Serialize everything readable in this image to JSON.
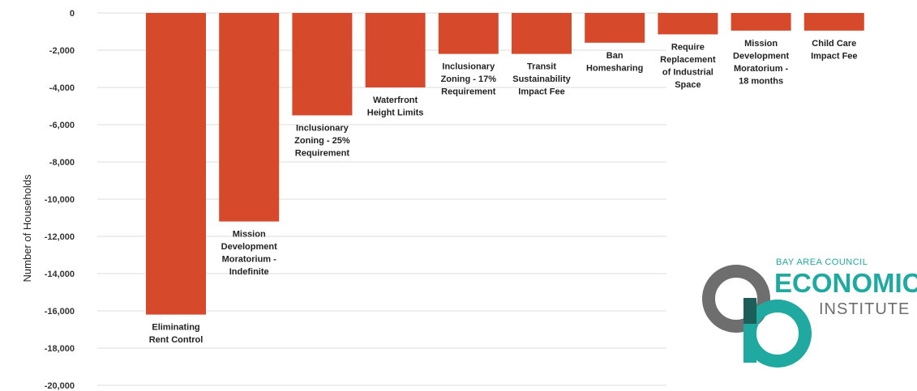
{
  "chart_data": {
    "type": "bar",
    "title": "",
    "xlabel": "",
    "ylabel": "Number of Households",
    "ylim": [
      -20000,
      0
    ],
    "yticks": [
      0,
      -2000,
      -4000,
      -6000,
      -8000,
      -10000,
      -12000,
      -14000,
      -16000,
      -18000,
      -20000
    ],
    "ytick_labels": [
      "0",
      "-2,000",
      "-4,000",
      "-6,000",
      "-8,000",
      "-10,000",
      "-12,000",
      "-14,000",
      "-16,000",
      "-18,000",
      "-20,000"
    ],
    "grid": true,
    "bar_color": "#d64a2b",
    "grid_color": "#dcdcdc",
    "categories": [
      [
        "Eliminating",
        "Rent Control"
      ],
      [
        "Mission",
        "Development",
        "Moratorium -",
        "Indefinite"
      ],
      [
        "Inclusionary",
        "Zoning - 25%",
        "Requirement"
      ],
      [
        "Waterfront",
        "Height Limits"
      ],
      [
        "Inclusionary",
        "Zoning - 17%",
        "Requirement"
      ],
      [
        "Transit",
        "Sustainability",
        "Impact Fee"
      ],
      [
        "Ban",
        "Homesharing"
      ],
      [
        "Require",
        "Replacement",
        "of Industrial",
        "Space"
      ],
      [
        "Mission",
        "Development",
        "Moratorium -",
        "18 months"
      ],
      [
        "Child Care",
        "Impact Fee"
      ]
    ],
    "values": [
      -16200,
      -11200,
      -5500,
      -4000,
      -2200,
      -2200,
      -1600,
      -1150,
      -950,
      -950
    ]
  },
  "logo": {
    "top_text": "BAY AREA COUNCIL",
    "main_text": "ECONOMIC",
    "sub_text": "INSTITUTE",
    "teal": "#1fa9a0",
    "gray": "#6e6e6e"
  }
}
